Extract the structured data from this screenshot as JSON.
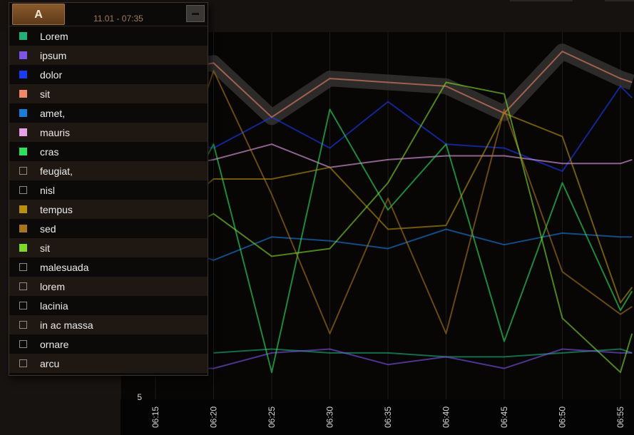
{
  "legend_header": {
    "tab_label": "A",
    "date_range": "11.01 - 07:35",
    "collapse_label": "−"
  },
  "legend_items": [
    {
      "label": "Lorem",
      "color": "#1fb07a",
      "enabled": true
    },
    {
      "label": "ipsum",
      "color": "#7b55e6",
      "enabled": true
    },
    {
      "label": "dolor",
      "color": "#1a3cf0",
      "enabled": true
    },
    {
      "label": "sit",
      "color": "#f0866a",
      "enabled": true
    },
    {
      "label": "amet,",
      "color": "#1a7cd6",
      "enabled": true
    },
    {
      "label": "mauris",
      "color": "#e6a0e6",
      "enabled": true
    },
    {
      "label": "cras",
      "color": "#2ee05a",
      "enabled": true
    },
    {
      "label": "feugiat,",
      "color": "",
      "enabled": false
    },
    {
      "label": "nisl",
      "color": "",
      "enabled": false
    },
    {
      "label": "tempus",
      "color": "#b8920e",
      "enabled": true
    },
    {
      "label": "sed",
      "color": "#a8741a",
      "enabled": true
    },
    {
      "label": "sit",
      "color": "#7ed82a",
      "enabled": true
    },
    {
      "label": "malesuada",
      "color": "",
      "enabled": false
    },
    {
      "label": "lorem",
      "color": "",
      "enabled": false
    },
    {
      "label": "lacinia",
      "color": "",
      "enabled": false
    },
    {
      "label": "in ac massa",
      "color": "",
      "enabled": false
    },
    {
      "label": "ornare",
      "color": "",
      "enabled": false
    },
    {
      "label": "arcu",
      "color": "",
      "enabled": false
    }
  ],
  "chart_data": {
    "type": "line",
    "title": "",
    "xlabel": "",
    "ylabel": "",
    "x": [
      "06:15",
      "06:20",
      "06:25",
      "06:30",
      "06:35",
      "06:40",
      "06:45",
      "06:50",
      "06:55"
    ],
    "y_ticks": [
      {
        "label": "5",
        "value": 5
      }
    ],
    "y_range": [
      5,
      100
    ],
    "plot_x_start": "06:12",
    "highlighted_series": "sit",
    "series": [
      {
        "name": "Lorem",
        "color": "#1fb07a",
        "points": [
          [
            "06:20",
            17
          ],
          [
            "06:25",
            18
          ],
          [
            "06:30",
            17
          ],
          [
            "06:35",
            17
          ],
          [
            "06:40",
            16
          ],
          [
            "06:45",
            16
          ],
          [
            "06:50",
            17
          ],
          [
            "06:55",
            18
          ],
          [
            "06:56",
            17
          ]
        ]
      },
      {
        "name": "ipsum",
        "color": "#7b55e6",
        "points": [
          [
            "06:18",
            13
          ],
          [
            "06:20",
            13
          ],
          [
            "06:25",
            17
          ],
          [
            "06:30",
            18
          ],
          [
            "06:35",
            14
          ],
          [
            "06:40",
            16
          ],
          [
            "06:45",
            13
          ],
          [
            "06:50",
            18
          ],
          [
            "06:55",
            17
          ],
          [
            "06:56",
            17
          ]
        ]
      },
      {
        "name": "dolor",
        "color": "#1a3cf0",
        "points": [
          [
            "06:18",
            71
          ],
          [
            "06:20",
            70
          ],
          [
            "06:25",
            78
          ],
          [
            "06:30",
            70
          ],
          [
            "06:35",
            82
          ],
          [
            "06:40",
            71
          ],
          [
            "06:45",
            70
          ],
          [
            "06:50",
            64
          ],
          [
            "06:55",
            86
          ],
          [
            "06:56",
            83
          ]
        ]
      },
      {
        "name": "sit",
        "color": "#f0866a",
        "points": [
          [
            "06:18",
            91
          ],
          [
            "06:20",
            92
          ],
          [
            "06:25",
            78
          ],
          [
            "06:30",
            88
          ],
          [
            "06:35",
            87
          ],
          [
            "06:40",
            86
          ],
          [
            "06:45",
            79
          ],
          [
            "06:50",
            95
          ],
          [
            "06:55",
            88
          ],
          [
            "06:56",
            87
          ]
        ]
      },
      {
        "name": "amet,",
        "color": "#1a7cd6",
        "points": [
          [
            "06:18",
            43
          ],
          [
            "06:20",
            41
          ],
          [
            "06:25",
            47
          ],
          [
            "06:30",
            46
          ],
          [
            "06:35",
            44
          ],
          [
            "06:40",
            49
          ],
          [
            "06:45",
            45
          ],
          [
            "06:50",
            48
          ],
          [
            "06:55",
            47
          ],
          [
            "06:56",
            47
          ]
        ]
      },
      {
        "name": "mauris",
        "color": "#e6a0e6",
        "points": [
          [
            "06:18",
            66
          ],
          [
            "06:20",
            67
          ],
          [
            "06:25",
            71
          ],
          [
            "06:30",
            65
          ],
          [
            "06:35",
            67
          ],
          [
            "06:40",
            68
          ],
          [
            "06:45",
            68
          ],
          [
            "06:50",
            66
          ],
          [
            "06:55",
            66
          ],
          [
            "06:56",
            67
          ]
        ]
      },
      {
        "name": "cras",
        "color": "#2ee05a",
        "points": [
          [
            "06:18",
            60
          ],
          [
            "06:20",
            71
          ],
          [
            "06:25",
            12
          ],
          [
            "06:30",
            80
          ],
          [
            "06:35",
            54
          ],
          [
            "06:40",
            71
          ],
          [
            "06:45",
            20
          ],
          [
            "06:50",
            61
          ],
          [
            "06:55",
            28
          ],
          [
            "06:56",
            33
          ]
        ]
      },
      {
        "name": "tempus",
        "color": "#b8920e",
        "points": [
          [
            "06:18",
            57
          ],
          [
            "06:20",
            62
          ],
          [
            "06:25",
            62
          ],
          [
            "06:30",
            65
          ],
          [
            "06:35",
            49
          ],
          [
            "06:40",
            50
          ],
          [
            "06:45",
            79
          ],
          [
            "06:50",
            73
          ],
          [
            "06:55",
            30
          ],
          [
            "06:56",
            34
          ]
        ]
      },
      {
        "name": "sed",
        "color": "#a8741a",
        "points": [
          [
            "06:18",
            72
          ],
          [
            "06:20",
            90
          ],
          [
            "06:25",
            58
          ],
          [
            "06:30",
            22
          ],
          [
            "06:35",
            57
          ],
          [
            "06:40",
            22
          ],
          [
            "06:45",
            80
          ],
          [
            "06:50",
            38
          ],
          [
            "06:55",
            27
          ],
          [
            "06:56",
            29
          ]
        ]
      },
      {
        "name": "sit",
        "color": "#7ed82a",
        "points": [
          [
            "06:18",
            50
          ],
          [
            "06:20",
            53
          ],
          [
            "06:25",
            42
          ],
          [
            "06:30",
            44
          ],
          [
            "06:35",
            61
          ],
          [
            "06:40",
            87
          ],
          [
            "06:45",
            84
          ],
          [
            "06:50",
            26
          ],
          [
            "06:55",
            12
          ],
          [
            "06:56",
            22
          ]
        ]
      }
    ]
  }
}
